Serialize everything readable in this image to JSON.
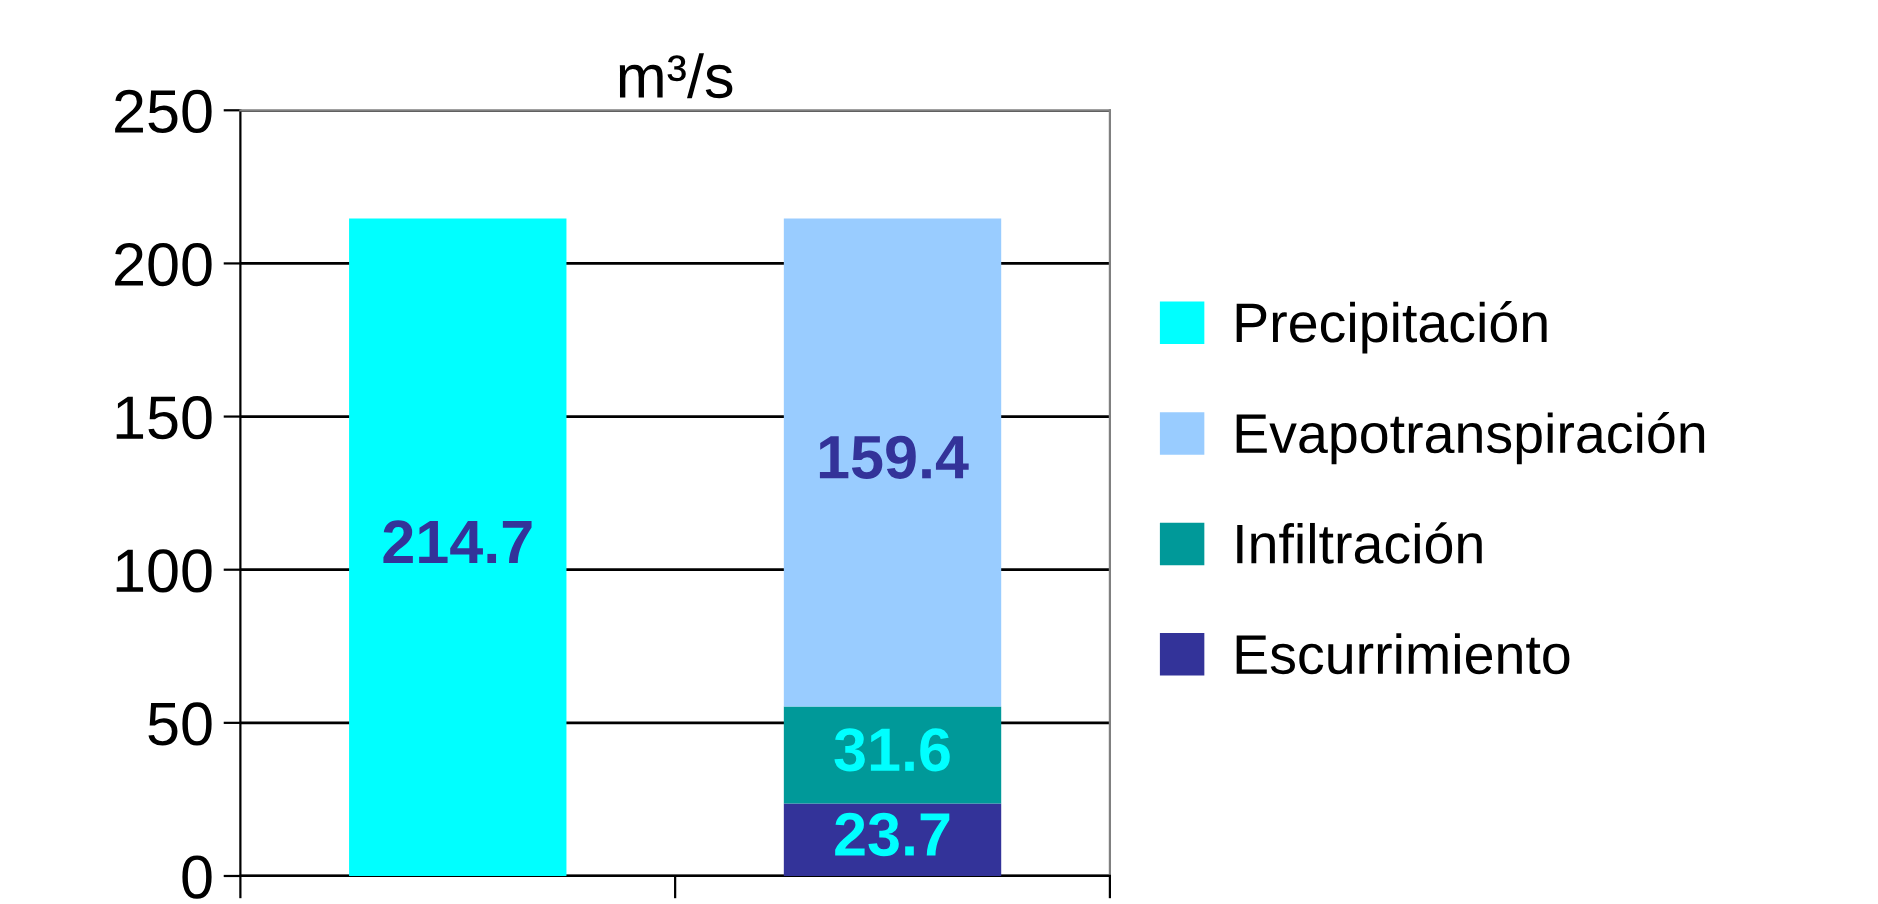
{
  "chart_data": {
    "type": "bar",
    "title": "m³/s",
    "stacked": true,
    "data_labels": true,
    "categories": [
      null,
      null
    ],
    "series": [
      {
        "name": "Escurrimiento",
        "color": "#333399",
        "values": [
          null,
          23.7
        ]
      },
      {
        "name": "Infiltración",
        "color": "#009999",
        "values": [
          null,
          31.6
        ]
      },
      {
        "name": "Evapotranspiración",
        "color": "#99ccff",
        "values": [
          null,
          159.4
        ]
      },
      {
        "name": "Precipitación",
        "color": "#00ffff",
        "values": [
          214.7,
          null
        ]
      }
    ],
    "ylim": [
      0,
      250
    ],
    "yticks": [
      0,
      50,
      100,
      150,
      200,
      250
    ],
    "grid": "y",
    "legend": "right",
    "tick_labels": "y"
  }
}
